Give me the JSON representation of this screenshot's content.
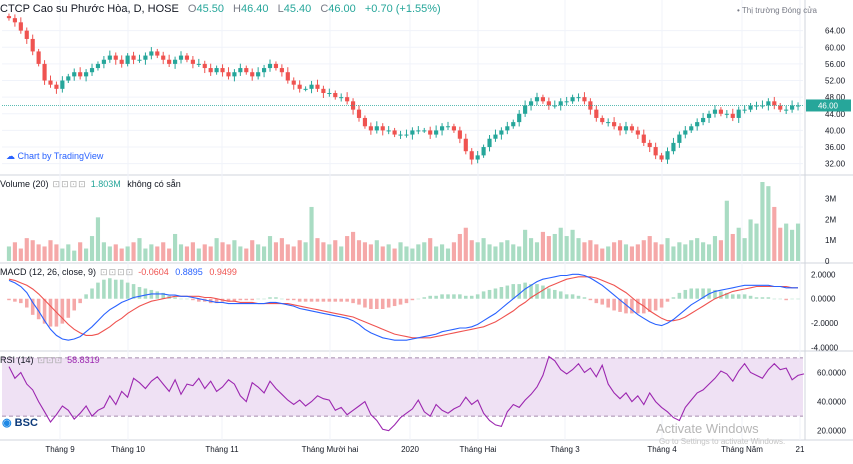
{
  "header": {
    "symbol": "CTCP Cao su Phước Hòa, D, HOSE",
    "open_label": "O",
    "open": "45.50",
    "high_label": "H",
    "high": "46.40",
    "low_label": "L",
    "low": "45.40",
    "close_label": "C",
    "close": "46.00",
    "change": "+0.70 (+1.55%)",
    "market_status": "• Thị trường Đóng cửa"
  },
  "branding": {
    "tradingview_link": "Chart by TradingView",
    "broker_logo": "BSC"
  },
  "watermark": {
    "line1": "Activate Windows",
    "line2": "Go to Settings to activate Windows."
  },
  "colors": {
    "up": "#26a69a",
    "down": "#ef5350",
    "vol_up": "#a9dcc3",
    "vol_down": "#f5a8a8",
    "macd_line": "#2962ff",
    "signal_line": "#ef5350",
    "rsi_line": "#9c27b0",
    "rsi_band": "#efe1f4"
  },
  "volume_pane": {
    "title": "Volume (20)",
    "value": "1.803M",
    "extra": "không có sẵn"
  },
  "macd_pane": {
    "title": "MACD (12, 26, close, 9)",
    "hist": "-0.0604",
    "macd": "0.8895",
    "signal": "0.9499"
  },
  "rsi_pane": {
    "title": "RSI (14)",
    "value": "58.8319"
  },
  "chart_data": [
    {
      "type": "candlestick",
      "title": "CTCP Cao su Phước Hòa, D, HOSE",
      "price_axis_ticks": [
        "64.00",
        "60.00",
        "56.00",
        "52.00",
        "48.00",
        "44.00",
        "40.00",
        "36.00",
        "32.00"
      ],
      "last_price_label": "46.00",
      "ylim": [
        30,
        68
      ],
      "x_ticks": [
        "Tháng 9",
        "Tháng 10",
        "Tháng 11",
        "Tháng Mười hai",
        "2020",
        "Tháng Hai",
        "Tháng 3",
        "Tháng 4",
        "Tháng Năm",
        "21"
      ],
      "series": [
        {
          "name": "close",
          "values": [
            67,
            66,
            64,
            62,
            59,
            56,
            52,
            51,
            50,
            52,
            53,
            54,
            53,
            54,
            55,
            56,
            57,
            58,
            57,
            56,
            58,
            57,
            57,
            58,
            59,
            58,
            57,
            56,
            57,
            58,
            57,
            56,
            56,
            55,
            54,
            55,
            54,
            53,
            54,
            55,
            54,
            53,
            54,
            55,
            56,
            55,
            54,
            52,
            51,
            50,
            50,
            51,
            50,
            49,
            49,
            48,
            48,
            47,
            45,
            43,
            41,
            40,
            41,
            40,
            40,
            39,
            39,
            39,
            40,
            40,
            40,
            39,
            40,
            41,
            41,
            40,
            38,
            35,
            33,
            34,
            36,
            38,
            39,
            40,
            41,
            42,
            44,
            46,
            47,
            48,
            47,
            46,
            46,
            47,
            47,
            48,
            48,
            47,
            45,
            43,
            42,
            42,
            41,
            40,
            41,
            40,
            39,
            37,
            36,
            34,
            33,
            35,
            37,
            39,
            40,
            41,
            42,
            43,
            44,
            45,
            44,
            44,
            43,
            45,
            45,
            46,
            46,
            46,
            47,
            46,
            45,
            45,
            46,
            46
          ]
        }
      ]
    },
    {
      "type": "bar",
      "title": "Volume (20)",
      "axis_ticks": [
        "3M",
        "2M",
        "1M",
        "0"
      ],
      "ylim": [
        0,
        3.8
      ],
      "series": [
        {
          "name": "volume",
          "values": [
            0.7,
            0.9,
            0.6,
            1.1,
            1.0,
            0.8,
            0.7,
            1.0,
            0.8,
            0.6,
            0.8,
            0.5,
            0.9,
            0.6,
            1.2,
            2.1,
            0.9,
            0.7,
            0.8,
            0.6,
            0.7,
            0.9,
            1.1,
            0.6,
            0.8,
            0.7,
            0.9,
            0.6,
            1.3,
            0.8,
            0.7,
            0.9,
            0.6,
            0.8,
            0.7,
            1.1,
            0.9,
            0.8,
            1.0,
            0.7,
            0.6,
            1.0,
            0.8,
            0.7,
            1.2,
            0.9,
            1.1,
            0.8,
            0.7,
            1.0,
            0.9,
            2.6,
            1.1,
            0.9,
            0.8,
            1.0,
            0.7,
            1.2,
            1.4,
            1.0,
            0.9,
            0.8,
            1.0,
            0.7,
            0.8,
            0.6,
            0.9,
            0.7,
            0.6,
            0.8,
            0.9,
            1.1,
            0.7,
            0.8,
            0.6,
            0.9,
            1.3,
            1.6,
            1.0,
            0.9,
            1.1,
            0.8,
            0.7,
            0.9,
            1.0,
            0.8,
            0.7,
            1.5,
            1.1,
            0.9,
            1.4,
            1.2,
            1.3,
            1.6,
            1.2,
            1.5,
            1.1,
            0.9,
            1.0,
            0.8,
            0.6,
            0.7,
            0.9,
            1.0,
            0.8,
            0.7,
            0.8,
            1.0,
            1.2,
            0.9,
            0.8,
            1.1,
            0.7,
            0.9,
            0.8,
            1.0,
            1.1,
            0.9,
            0.8,
            1.2,
            1.0,
            2.9,
            1.3,
            1.6,
            1.1,
            2.0,
            1.8,
            3.8,
            3.6,
            2.6,
            1.6,
            1.8,
            1.5,
            1.8
          ]
        }
      ]
    },
    {
      "type": "line",
      "title": "MACD (12, 26, close, 9)",
      "axis_ticks": [
        "2.0000",
        "0.0000",
        "-2.0000",
        "-4.0000"
      ],
      "ylim": [
        -4.2,
        2.6
      ],
      "series": [
        {
          "name": "MACD",
          "values": [
            1.5,
            1.3,
            1.0,
            0.5,
            -0.3,
            -1.0,
            -1.8,
            -2.5,
            -3.0,
            -3.3,
            -3.4,
            -3.3,
            -3.1,
            -2.7,
            -2.3,
            -1.8,
            -1.3,
            -0.9,
            -0.6,
            -0.3,
            -0.1,
            0.1,
            0.2,
            0.3,
            0.4,
            0.4,
            0.4,
            0.3,
            0.3,
            0.2,
            0.2,
            0.1,
            0.0,
            -0.1,
            -0.2,
            -0.3,
            -0.3,
            -0.4,
            -0.4,
            -0.4,
            -0.4,
            -0.4,
            -0.4,
            -0.4,
            -0.3,
            -0.3,
            -0.4,
            -0.5,
            -0.6,
            -0.8,
            -0.9,
            -1.0,
            -1.1,
            -1.2,
            -1.3,
            -1.4,
            -1.5,
            -1.6,
            -1.8,
            -2.1,
            -2.5,
            -2.8,
            -3.0,
            -3.2,
            -3.3,
            -3.4,
            -3.4,
            -3.4,
            -3.3,
            -3.2,
            -3.1,
            -3.0,
            -2.9,
            -2.7,
            -2.6,
            -2.5,
            -2.4,
            -2.4,
            -2.3,
            -2.1,
            -1.8,
            -1.5,
            -1.2,
            -0.8,
            -0.4,
            0.0,
            0.4,
            0.8,
            1.1,
            1.4,
            1.6,
            1.7,
            1.8,
            1.9,
            1.9,
            2.0,
            2.0,
            1.9,
            1.7,
            1.4,
            1.1,
            0.7,
            0.3,
            -0.1,
            -0.5,
            -0.9,
            -1.3,
            -1.6,
            -1.9,
            -2.1,
            -2.2,
            -2.0,
            -1.7,
            -1.3,
            -0.9,
            -0.5,
            -0.2,
            0.1,
            0.4,
            0.6,
            0.7,
            0.8,
            0.9,
            1.0,
            1.1,
            1.1,
            1.1,
            1.1,
            1.1,
            1.0,
            1.0,
            0.9,
            0.9,
            0.9
          ]
        },
        {
          "name": "Signal",
          "values": [
            1.6,
            1.5,
            1.3,
            1.1,
            0.8,
            0.4,
            -0.1,
            -0.6,
            -1.1,
            -1.6,
            -2.1,
            -2.5,
            -2.8,
            -3.0,
            -3.0,
            -2.9,
            -2.6,
            -2.3,
            -1.9,
            -1.6,
            -1.2,
            -0.9,
            -0.6,
            -0.4,
            -0.2,
            -0.1,
            0.0,
            0.1,
            0.2,
            0.2,
            0.2,
            0.2,
            0.2,
            0.1,
            0.1,
            0.0,
            -0.1,
            -0.2,
            -0.2,
            -0.3,
            -0.3,
            -0.3,
            -0.4,
            -0.4,
            -0.4,
            -0.4,
            -0.4,
            -0.4,
            -0.5,
            -0.6,
            -0.7,
            -0.8,
            -0.9,
            -1.0,
            -1.1,
            -1.2,
            -1.3,
            -1.4,
            -1.5,
            -1.7,
            -1.9,
            -2.1,
            -2.3,
            -2.5,
            -2.7,
            -2.9,
            -3.0,
            -3.1,
            -3.2,
            -3.2,
            -3.2,
            -3.2,
            -3.1,
            -3.0,
            -2.9,
            -2.8,
            -2.7,
            -2.6,
            -2.5,
            -2.4,
            -2.3,
            -2.1,
            -1.9,
            -1.6,
            -1.3,
            -1.0,
            -0.6,
            -0.3,
            0.1,
            0.4,
            0.7,
            1.0,
            1.2,
            1.4,
            1.6,
            1.7,
            1.8,
            1.8,
            1.8,
            1.7,
            1.5,
            1.3,
            1.1,
            0.8,
            0.5,
            0.1,
            -0.3,
            -0.6,
            -1.0,
            -1.3,
            -1.6,
            -1.8,
            -1.8,
            -1.7,
            -1.5,
            -1.2,
            -0.9,
            -0.6,
            -0.3,
            0.0,
            0.2,
            0.4,
            0.6,
            0.7,
            0.8,
            0.9,
            1.0,
            1.0,
            1.0,
            1.0,
            1.0,
            1.0,
            0.9,
            0.9
          ]
        }
      ]
    },
    {
      "type": "line",
      "title": "RSI (14)",
      "axis_ticks": [
        "60.0000",
        "40.0000",
        "20.0000"
      ],
      "band": [
        30,
        70
      ],
      "ylim": [
        15,
        72
      ],
      "series": [
        {
          "name": "RSI",
          "values": [
            64,
            56,
            60,
            52,
            48,
            40,
            33,
            26,
            31,
            37,
            34,
            28,
            32,
            37,
            30,
            34,
            36,
            44,
            38,
            47,
            43,
            56,
            53,
            49,
            54,
            57,
            52,
            47,
            55,
            45,
            52,
            51,
            56,
            49,
            54,
            47,
            50,
            55,
            52,
            44,
            40,
            53,
            50,
            46,
            54,
            49,
            45,
            41,
            38,
            41,
            37,
            40,
            44,
            42,
            41,
            34,
            36,
            31,
            34,
            37,
            40,
            31,
            27,
            21,
            20,
            24,
            29,
            32,
            35,
            41,
            33,
            30,
            38,
            34,
            32,
            35,
            37,
            43,
            38,
            41,
            32,
            27,
            24,
            23,
            33,
            38,
            36,
            41,
            45,
            50,
            58,
            71,
            68,
            62,
            59,
            62,
            66,
            60,
            63,
            57,
            65,
            52,
            46,
            42,
            46,
            40,
            44,
            38,
            46,
            40,
            36,
            33,
            29,
            27,
            36,
            41,
            46,
            48,
            52,
            56,
            61,
            59,
            54,
            61,
            66,
            60,
            58,
            56,
            62,
            66,
            62,
            63,
            55,
            58,
            59
          ]
        }
      ]
    }
  ]
}
